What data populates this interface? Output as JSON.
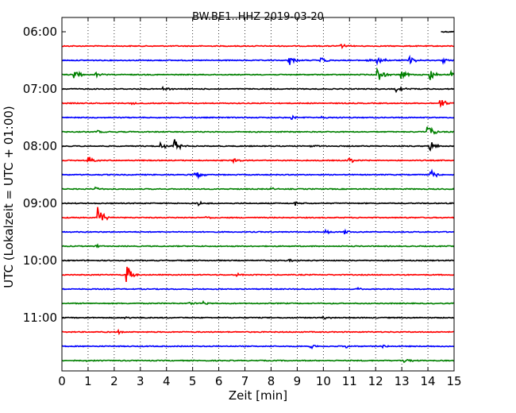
{
  "chart_data": {
    "type": "line",
    "title": "BW.BE1..HHZ 2019-03-20",
    "xlabel": "Zeit  [min]",
    "ylabel": "UTC (Lokalzeit = UTC + 01:00)",
    "xlim": [
      0,
      15
    ],
    "x_ticks": [
      "0",
      "1",
      "2",
      "3",
      "4",
      "5",
      "6",
      "7",
      "8",
      "9",
      "10",
      "11",
      "12",
      "13",
      "14",
      "15"
    ],
    "y_ticks": [
      "06:00",
      "07:00",
      "08:00",
      "09:00",
      "10:00",
      "11:00"
    ],
    "grid": "vertical dotted at each minute",
    "row_interval_min": 15,
    "trace_color_cycle": [
      "#000000",
      "#ff0000",
      "#0000ff",
      "#008000"
    ],
    "series": [
      {
        "start": "06:00",
        "color": "#000000",
        "trace_minutes": [
          14.5,
          15.0
        ],
        "events": []
      },
      {
        "start": "06:15",
        "color": "#ff0000",
        "events": [
          {
            "t": 10.7,
            "amp": 0.3
          }
        ]
      },
      {
        "start": "06:30",
        "color": "#0000ff",
        "events": [
          {
            "t": 8.7,
            "amp": 0.7
          },
          {
            "t": 9.9,
            "amp": 0.5
          },
          {
            "t": 11.7,
            "amp": 0.2
          },
          {
            "t": 12.1,
            "amp": 0.8
          },
          {
            "t": 13.3,
            "amp": 0.6
          },
          {
            "t": 14.6,
            "amp": 0.4
          }
        ]
      },
      {
        "start": "06:45",
        "color": "#008000",
        "events": [
          {
            "t": 0.5,
            "amp": 0.9
          },
          {
            "t": 1.3,
            "amp": 0.3
          },
          {
            "t": 12.1,
            "amp": 1.0
          },
          {
            "t": 13.0,
            "amp": 0.6
          },
          {
            "t": 14.1,
            "amp": 0.8
          },
          {
            "t": 14.9,
            "amp": 0.4
          }
        ]
      },
      {
        "start": "07:00",
        "color": "#000000",
        "events": [
          {
            "t": 3.9,
            "amp": 0.3
          },
          {
            "t": 12.8,
            "amp": 0.4
          },
          {
            "t": 13.0,
            "amp": 0.3
          }
        ]
      },
      {
        "start": "07:15",
        "color": "#ff0000",
        "events": [
          {
            "t": 14.5,
            "amp": 0.6
          },
          {
            "t": 2.7,
            "amp": 0.2
          }
        ]
      },
      {
        "start": "07:30",
        "color": "#0000ff",
        "events": [
          {
            "t": 8.8,
            "amp": 0.3
          },
          {
            "t": 9.9,
            "amp": 0.2
          }
        ]
      },
      {
        "start": "07:45",
        "color": "#008000",
        "events": [
          {
            "t": 1.4,
            "amp": 0.2
          },
          {
            "t": 14.0,
            "amp": 1.0
          }
        ]
      },
      {
        "start": "08:00",
        "color": "#000000",
        "events": [
          {
            "t": 3.8,
            "amp": 0.5
          },
          {
            "t": 4.3,
            "amp": 1.0
          },
          {
            "t": 9.5,
            "amp": 0.3
          },
          {
            "t": 14.1,
            "amp": 0.8
          }
        ]
      },
      {
        "start": "08:15",
        "color": "#ff0000",
        "events": [
          {
            "t": 1.0,
            "amp": 0.7
          },
          {
            "t": 6.6,
            "amp": 0.3
          },
          {
            "t": 10.9,
            "amp": 0.9
          }
        ]
      },
      {
        "start": "08:30",
        "color": "#0000ff",
        "events": [
          {
            "t": 5.1,
            "amp": 0.4
          },
          {
            "t": 5.2,
            "amp": 0.3
          },
          {
            "t": 14.1,
            "amp": 0.9
          }
        ]
      },
      {
        "start": "08:45",
        "color": "#008000",
        "events": [
          {
            "t": 1.3,
            "amp": 0.2
          },
          {
            "t": 8.0,
            "amp": 0.2
          }
        ]
      },
      {
        "start": "09:00",
        "color": "#000000",
        "events": [
          {
            "t": 5.2,
            "amp": 0.3
          },
          {
            "t": 8.9,
            "amp": 0.3
          }
        ]
      },
      {
        "start": "09:15",
        "color": "#ff0000",
        "events": [
          {
            "t": 1.4,
            "amp": 1.8
          },
          {
            "t": 5.5,
            "amp": 0.2
          }
        ]
      },
      {
        "start": "09:30",
        "color": "#0000ff",
        "events": [
          {
            "t": 10.1,
            "amp": 0.3
          },
          {
            "t": 10.8,
            "amp": 0.3
          }
        ]
      },
      {
        "start": "09:45",
        "color": "#008000",
        "events": [
          {
            "t": 1.3,
            "amp": 0.2
          }
        ]
      },
      {
        "start": "10:00",
        "color": "#000000",
        "events": [
          {
            "t": 8.7,
            "amp": 0.2
          }
        ]
      },
      {
        "start": "10:15",
        "color": "#ff0000",
        "events": [
          {
            "t": 2.5,
            "amp": 1.4
          },
          {
            "t": 6.7,
            "amp": 0.3
          }
        ]
      },
      {
        "start": "10:30",
        "color": "#0000ff",
        "events": [
          {
            "t": 11.3,
            "amp": 0.2
          }
        ]
      },
      {
        "start": "10:45",
        "color": "#008000",
        "events": [
          {
            "t": 5.4,
            "amp": 0.3
          },
          {
            "t": 4.9,
            "amp": 0.2
          }
        ]
      },
      {
        "start": "11:00",
        "color": "#000000",
        "events": [
          {
            "t": 2.4,
            "amp": 0.2
          },
          {
            "t": 10.0,
            "amp": 0.2
          }
        ]
      },
      {
        "start": "11:15",
        "color": "#ff0000",
        "events": [
          {
            "t": 2.2,
            "amp": 0.2
          }
        ]
      },
      {
        "start": "11:30",
        "color": "#0000ff",
        "events": [
          {
            "t": 9.5,
            "amp": 0.3
          },
          {
            "t": 10.9,
            "amp": 0.3
          },
          {
            "t": 12.3,
            "amp": 0.2
          }
        ]
      },
      {
        "start": "11:45",
        "color": "#008000",
        "events": [
          {
            "t": 13.1,
            "amp": 0.4
          },
          {
            "t": 0.9,
            "amp": 0.2
          }
        ]
      }
    ]
  }
}
